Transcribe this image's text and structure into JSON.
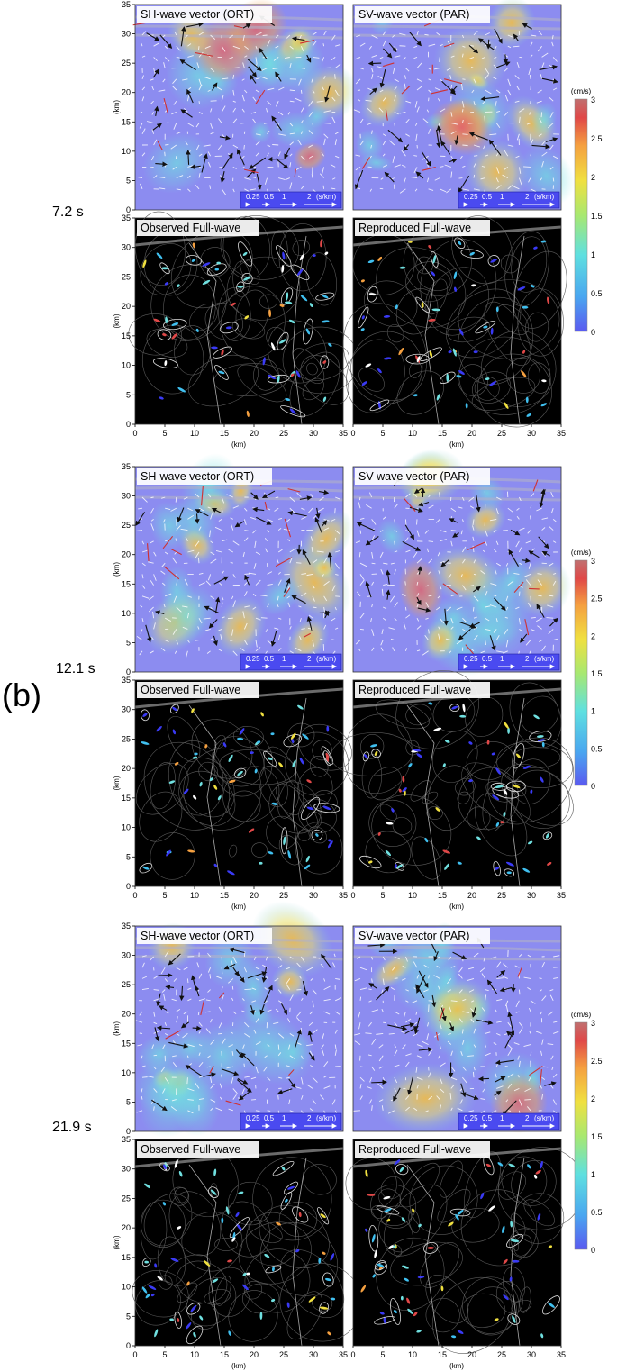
{
  "figure_label": "(b)",
  "color_scale": {
    "unit": "(cm/s)",
    "ticks": [
      "3",
      "2.5",
      "2",
      "1.5",
      "1",
      "0.5",
      "0"
    ],
    "gradient": [
      "#5a5af0",
      "#4aa6f0",
      "#5fe0e0",
      "#a8e870",
      "#f0e040",
      "#f5a040",
      "#e04848",
      "#c07070"
    ]
  },
  "scale_bar": {
    "labels": [
      "0.25",
      "0.5",
      "1",
      "2"
    ],
    "unit": "(s/km)"
  },
  "axis": {
    "y_label": "(km)",
    "x_label": "(km)",
    "y_ticks": [
      "0",
      "5",
      "10",
      "15",
      "20",
      "25",
      "30",
      "35"
    ],
    "x_ticks": [
      "0",
      "5",
      "10",
      "15",
      "20",
      "25",
      "30",
      "35"
    ]
  },
  "titles": {
    "sh": "SH-wave vector (ORT)",
    "sv": "SV-wave vector (PAR)",
    "observed": "Observed Full-wave",
    "reproduced": "Reproduced Full-wave"
  },
  "snapshots": [
    {
      "time": "7.2 s"
    },
    {
      "time": "12.1 s"
    },
    {
      "time": "21.9 s"
    }
  ]
}
